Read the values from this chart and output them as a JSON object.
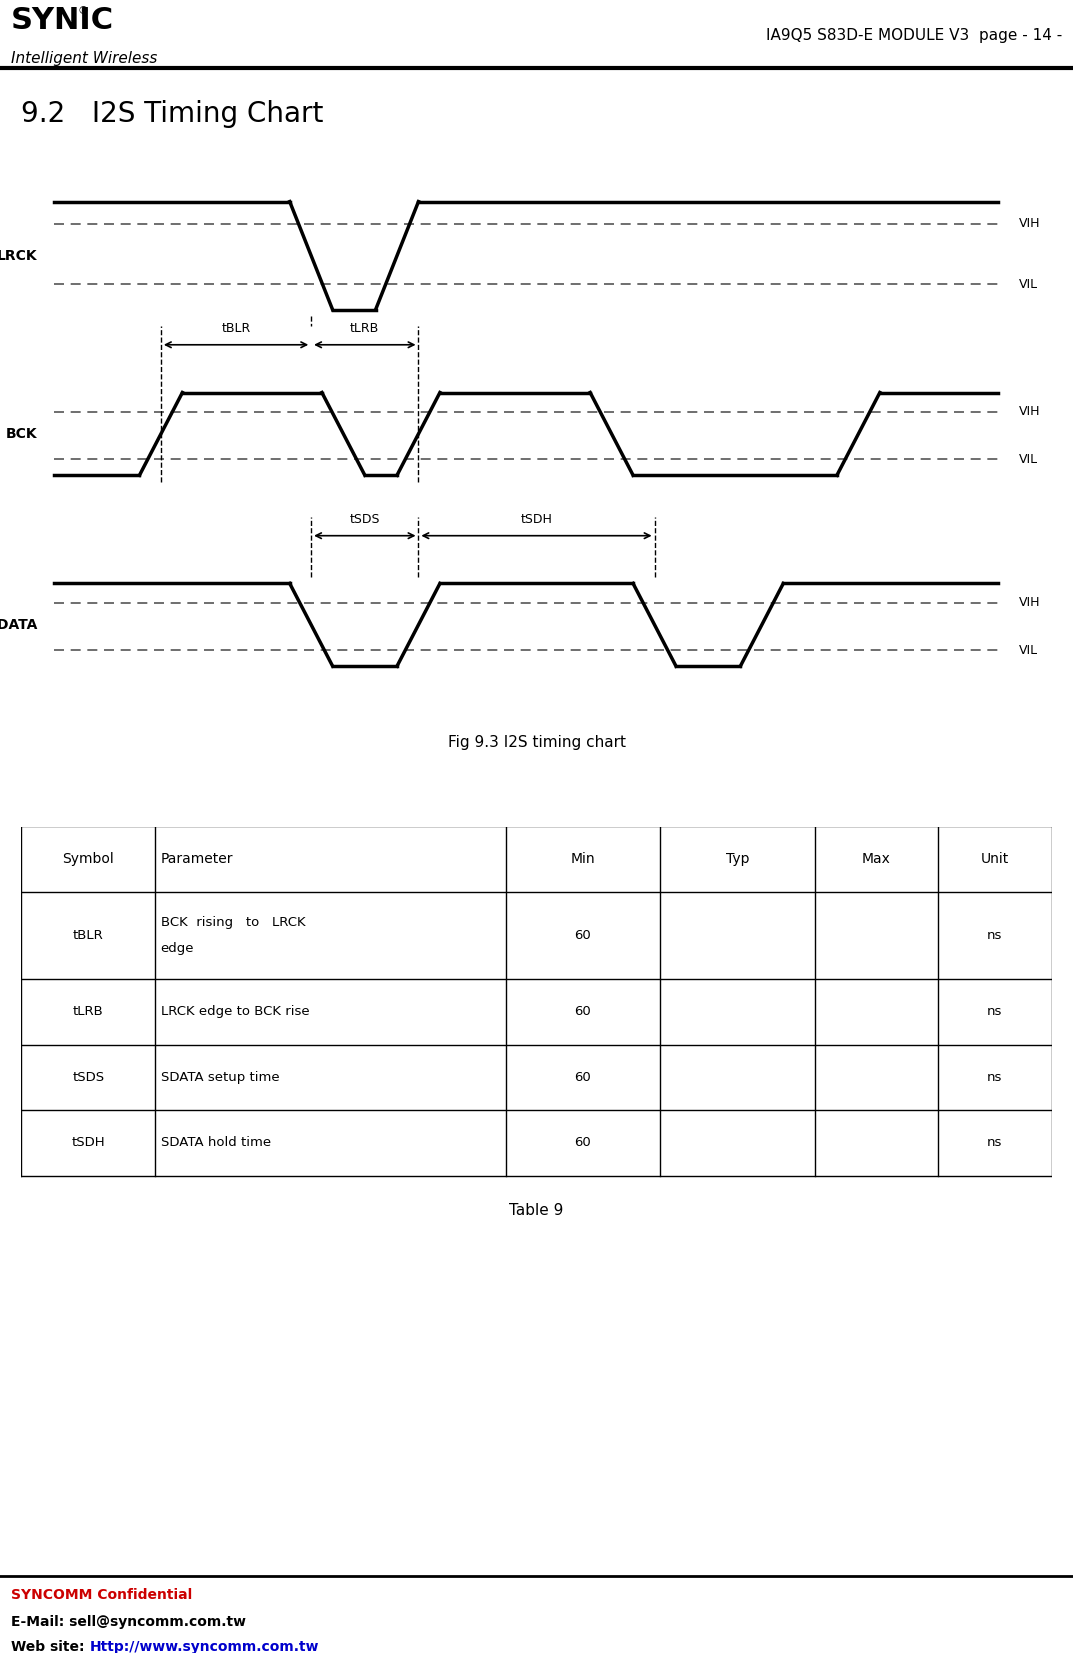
{
  "title": "9.2   I2S Timing Chart",
  "header_title": "IA9Q5 S83D-E MODULE V3  page - 14 -",
  "logo_text": "SYNIC",
  "logo_sub": "Intelligent Wireless",
  "fig_caption": "Fig 9.3 I2S timing chart",
  "table_caption": "Table 9",
  "footer_line1": "SYNCOMM Confidential",
  "footer_line2_prefix": "E-Mail: ",
  "footer_line2_value": "sell@syncomm.com.tw",
  "footer_line3_prefix": "Web site: ",
  "footer_line3_value": "Http://www.syncomm.com.tw",
  "table_headers": [
    "Symbol",
    "Parameter",
    "Min",
    "Typ",
    "Max",
    "Unit"
  ],
  "table_rows": [
    [
      "tBLR",
      "BCK  rising   to   LRCK\nedge",
      "60",
      "",
      "",
      "ns"
    ],
    [
      "tLRB",
      "LRCK edge to BCK rise",
      "60",
      "",
      "",
      "ns"
    ],
    [
      "tSDS",
      "SDATA setup time",
      "60",
      "",
      "",
      "ns"
    ],
    [
      "tSDH",
      "SDATA hold time",
      "60",
      "",
      "",
      "ns"
    ]
  ],
  "bg_color": "#ffffff",
  "line_color": "#000000",
  "dash_color": "#555555",
  "red_color": "#cc0000",
  "blue_color": "#0000cc"
}
